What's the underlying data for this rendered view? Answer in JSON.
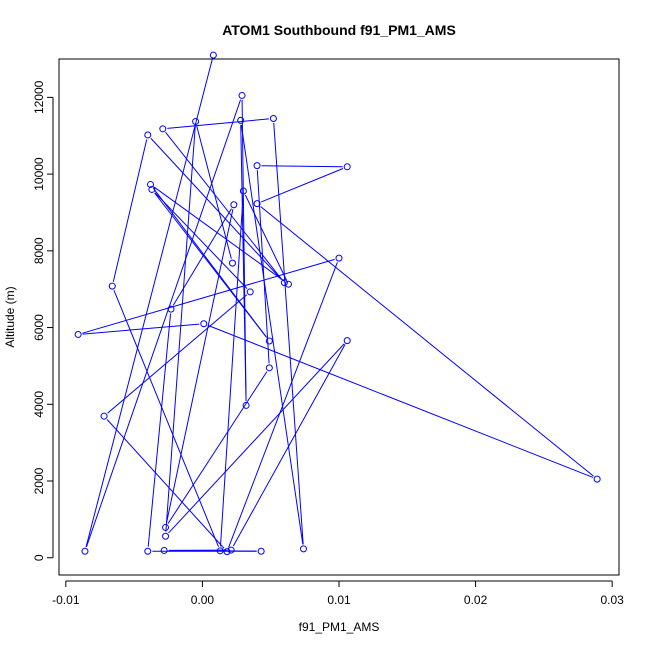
{
  "chart_data": {
    "type": "line",
    "title": "ATOM1 Southbound f91_PM1_AMS",
    "xlabel": "f91_PM1_AMS",
    "ylabel": "Altitude (m)",
    "xlim": [
      -0.0105,
      0.0305
    ],
    "ylim": [
      -450,
      13000
    ],
    "xticks": [
      -0.01,
      0.0,
      0.01,
      0.02,
      0.03
    ],
    "xtick_labels": [
      "-0.01",
      "0.00",
      "0.01",
      "0.02",
      "0.03"
    ],
    "yticks": [
      0,
      2000,
      4000,
      6000,
      8000,
      10000,
      12000
    ],
    "ytick_labels": [
      "0",
      "2000",
      "4000",
      "6000",
      "8000",
      "10000",
      "12000"
    ],
    "grid": false,
    "series": [
      {
        "color": "#0000ff",
        "marker": "open-circle",
        "points": [
          {
            "x": 0.0008,
            "y": 13100
          },
          {
            "x": -0.0086,
            "y": 170
          },
          {
            "x": 0.0029,
            "y": 12050
          },
          {
            "x": 0.0032,
            "y": 3970
          },
          {
            "x": 0.0028,
            "y": 11400
          },
          {
            "x": 0.0074,
            "y": 230
          },
          {
            "x": 0.0052,
            "y": 11450
          },
          {
            "x": -0.0029,
            "y": 11180
          },
          {
            "x": 0.006,
            "y": 7170
          },
          {
            "x": -0.004,
            "y": 11020
          },
          {
            "x": -0.0066,
            "y": 7080
          },
          {
            "x": 0.0013,
            "y": 180
          },
          {
            "x": 0.003,
            "y": 9560
          },
          {
            "x": 0.0063,
            "y": 7130
          },
          {
            "x": -0.0038,
            "y": 9730
          },
          {
            "x": 0.0049,
            "y": 5650
          },
          {
            "x": -0.0037,
            "y": 9600
          },
          {
            "x": 0.0035,
            "y": 6930
          },
          {
            "x": -0.0072,
            "y": 3690
          },
          {
            "x": 0.0018,
            "y": 160
          },
          {
            "x": 0.01,
            "y": 7810
          },
          {
            "x": -0.0091,
            "y": 5820
          },
          {
            "x": 0.0001,
            "y": 6100
          },
          {
            "x": 0.0289,
            "y": 2050
          },
          {
            "x": 0.004,
            "y": 9230
          },
          {
            "x": 0.0106,
            "y": 10190
          },
          {
            "x": 0.004,
            "y": 10220
          },
          {
            "x": 0.0049,
            "y": 4950
          },
          {
            "x": -0.0027,
            "y": 790
          },
          {
            "x": 0.0023,
            "y": 9200
          },
          {
            "x": -0.0023,
            "y": 6480
          },
          {
            "x": -0.004,
            "y": 170
          },
          {
            "x": 0.0043,
            "y": 170
          },
          {
            "x": -0.0028,
            "y": 190
          },
          {
            "x": 0.0021,
            "y": 200
          },
          {
            "x": 0.0106,
            "y": 5660
          },
          {
            "x": -0.0027,
            "y": 560
          },
          {
            "x": -0.0005,
            "y": 11370
          },
          {
            "x": 0.0022,
            "y": 7680
          }
        ]
      }
    ]
  }
}
